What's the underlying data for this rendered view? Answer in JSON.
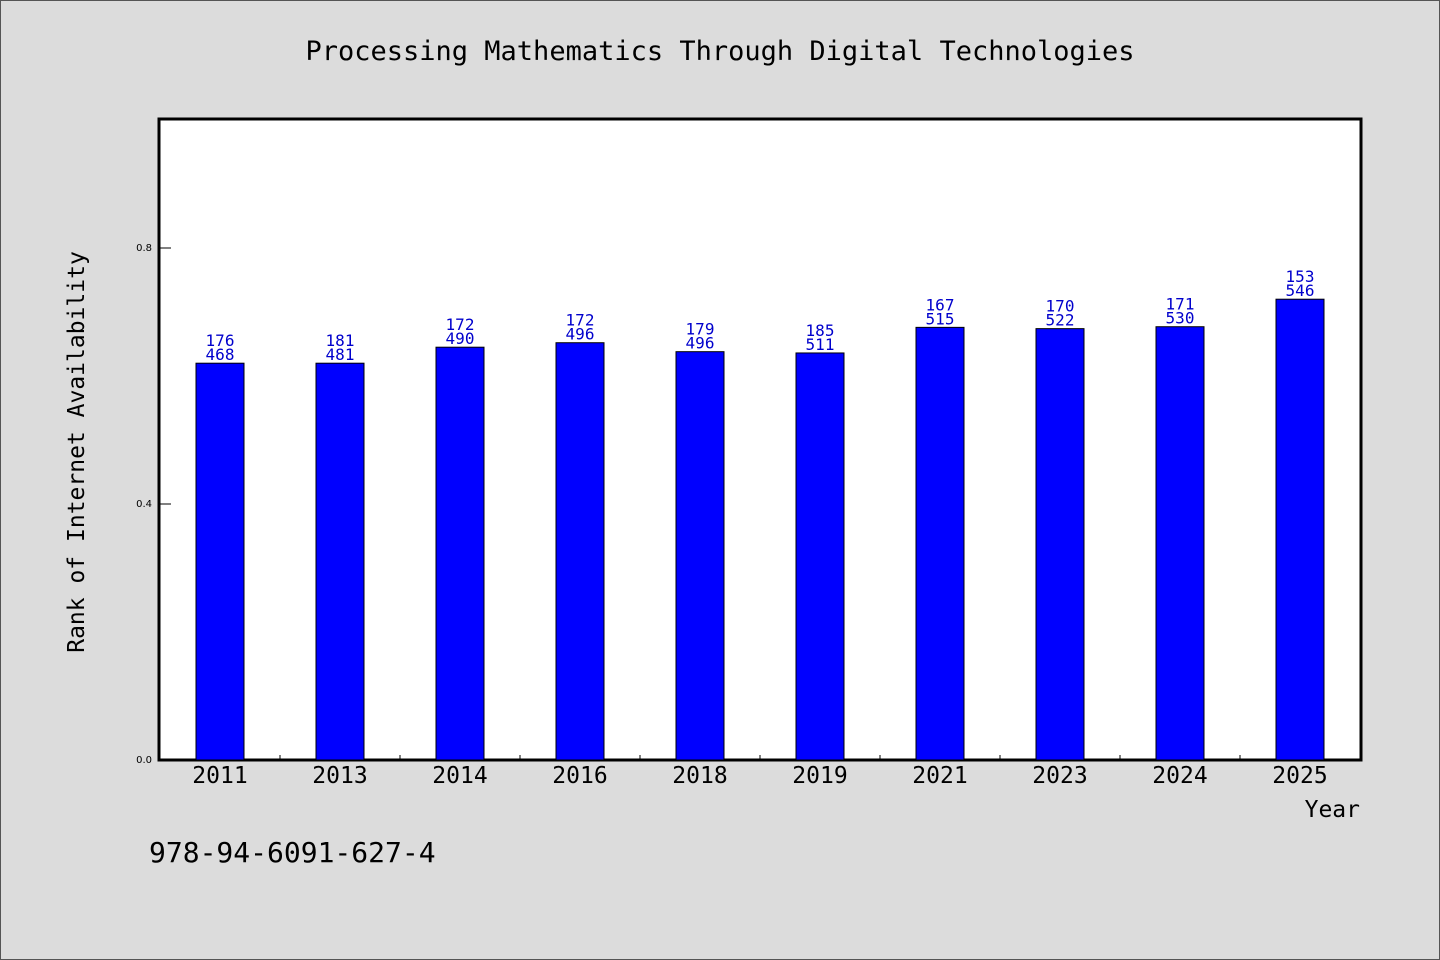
{
  "chart_data": {
    "type": "bar",
    "title": "Processing Mathematics Through Digital Technologies",
    "xlabel": "Year",
    "ylabel": "Rank of Internet Availability",
    "categories": [
      "2011",
      "2013",
      "2014",
      "2016",
      "2018",
      "2019",
      "2021",
      "2023",
      "2024",
      "2025"
    ],
    "values": [
      0.62,
      0.62,
      0.645,
      0.652,
      0.638,
      0.636,
      0.676,
      0.674,
      0.677,
      0.72
    ],
    "label_top": [
      "176",
      "181",
      "172",
      "172",
      "179",
      "185",
      "167",
      "170",
      "171",
      "153"
    ],
    "label_bottom": [
      "468",
      "481",
      "490",
      "496",
      "496",
      "511",
      "515",
      "522",
      "530",
      "546"
    ],
    "ylim": [
      0,
      1.0
    ],
    "yticks": [
      0.0,
      0.4,
      0.8
    ],
    "ytick_labels": [
      "0.0",
      "0.4",
      "0.8"
    ],
    "grid": false,
    "bar_color": "#0000ff",
    "label_color": "#0000cc"
  },
  "footer": {
    "isbn": "978-94-6091-627-4"
  }
}
